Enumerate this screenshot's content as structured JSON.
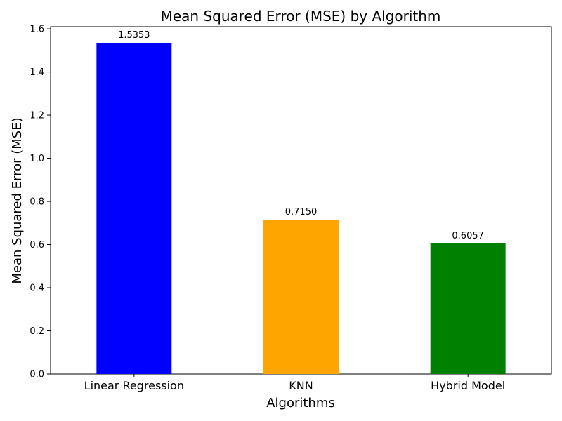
{
  "chart_data": {
    "type": "bar",
    "title": "Mean Squared Error (MSE) by Algorithm",
    "xlabel": "Algorithms",
    "ylabel": "Mean Squared Error (MSE)",
    "categories": [
      "Linear Regression",
      "KNN",
      "Hybrid Model"
    ],
    "values": [
      1.5353,
      0.715,
      0.6057
    ],
    "value_labels": [
      "1.5353",
      "0.7150",
      "0.6057"
    ],
    "colors": [
      "#0000ff",
      "#ffa500",
      "#008000"
    ],
    "ylim": [
      0,
      1.61
    ],
    "yticks": [
      0.0,
      0.2,
      0.4,
      0.6,
      0.8,
      1.0,
      1.2,
      1.4,
      1.6
    ],
    "ytick_labels": [
      "0.0",
      "0.2",
      "0.4",
      "0.6",
      "0.8",
      "1.0",
      "1.2",
      "1.4",
      "1.6"
    ],
    "grid": false,
    "legend": "none"
  }
}
